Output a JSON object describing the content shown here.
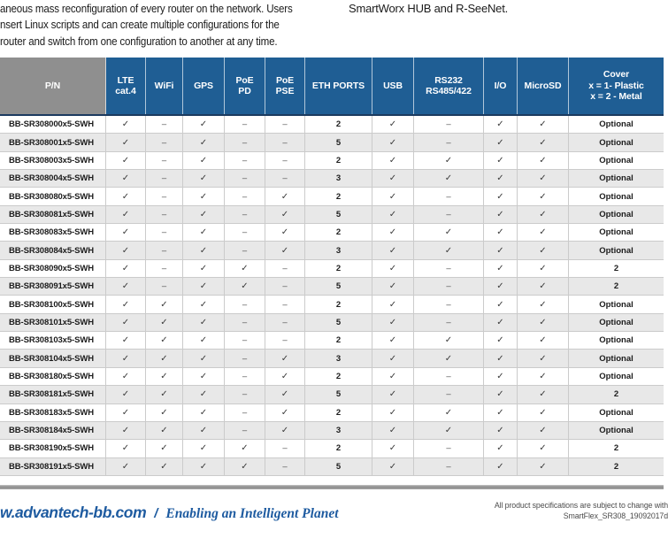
{
  "intro": {
    "left_lines": [
      "aneous mass reconfiguration of every router on the network. Users",
      "nsert Linux scripts and can create multiple configurations for the",
      "router and switch from one configuration to another at any time."
    ],
    "right_line": "SmartWorx HUB and R-SeeNet."
  },
  "table": {
    "headers": [
      "P/N",
      "LTE\ncat.4",
      "WiFi",
      "GPS",
      "PoE\nPD",
      "PoE\nPSE",
      "ETH PORTS",
      "USB",
      "RS232\nRS485/422",
      "I/O",
      "MicroSD",
      "Cover\nx = 1- Plastic\nx = 2 - Metal"
    ],
    "rows": [
      [
        "BB-SR308000x5-SWH",
        "✓",
        "–",
        "✓",
        "–",
        "–",
        "2",
        "✓",
        "–",
        "✓",
        "✓",
        "Optional"
      ],
      [
        "BB-SR308001x5-SWH",
        "✓",
        "–",
        "✓",
        "–",
        "–",
        "5",
        "✓",
        "–",
        "✓",
        "✓",
        "Optional"
      ],
      [
        "BB-SR308003x5-SWH",
        "✓",
        "–",
        "✓",
        "–",
        "–",
        "2",
        "✓",
        "✓",
        "✓",
        "✓",
        "Optional"
      ],
      [
        "BB-SR308004x5-SWH",
        "✓",
        "–",
        "✓",
        "–",
        "–",
        "3",
        "✓",
        "✓",
        "✓",
        "✓",
        "Optional"
      ],
      [
        "BB-SR308080x5-SWH",
        "✓",
        "–",
        "✓",
        "–",
        "✓",
        "2",
        "✓",
        "–",
        "✓",
        "✓",
        "Optional"
      ],
      [
        "BB-SR308081x5-SWH",
        "✓",
        "–",
        "✓",
        "–",
        "✓",
        "5",
        "✓",
        "–",
        "✓",
        "✓",
        "Optional"
      ],
      [
        "BB-SR308083x5-SWH",
        "✓",
        "–",
        "✓",
        "–",
        "✓",
        "2",
        "✓",
        "✓",
        "✓",
        "✓",
        "Optional"
      ],
      [
        "BB-SR308084x5-SWH",
        "✓",
        "–",
        "✓",
        "–",
        "✓",
        "3",
        "✓",
        "✓",
        "✓",
        "✓",
        "Optional"
      ],
      [
        "BB-SR308090x5-SWH",
        "✓",
        "–",
        "✓",
        "✓",
        "–",
        "2",
        "✓",
        "–",
        "✓",
        "✓",
        "2"
      ],
      [
        "BB-SR308091x5-SWH",
        "✓",
        "–",
        "✓",
        "✓",
        "–",
        "5",
        "✓",
        "–",
        "✓",
        "✓",
        "2"
      ],
      [
        "BB-SR308100x5-SWH",
        "✓",
        "✓",
        "✓",
        "–",
        "–",
        "2",
        "✓",
        "–",
        "✓",
        "✓",
        "Optional"
      ],
      [
        "BB-SR308101x5-SWH",
        "✓",
        "✓",
        "✓",
        "–",
        "–",
        "5",
        "✓",
        "–",
        "✓",
        "✓",
        "Optional"
      ],
      [
        "BB-SR308103x5-SWH",
        "✓",
        "✓",
        "✓",
        "–",
        "–",
        "2",
        "✓",
        "✓",
        "✓",
        "✓",
        "Optional"
      ],
      [
        "BB-SR308104x5-SWH",
        "✓",
        "✓",
        "✓",
        "–",
        "✓",
        "3",
        "✓",
        "✓",
        "✓",
        "✓",
        "Optional"
      ],
      [
        "BB-SR308180x5-SWH",
        "✓",
        "✓",
        "✓",
        "–",
        "✓",
        "2",
        "✓",
        "–",
        "✓",
        "✓",
        "Optional"
      ],
      [
        "BB-SR308181x5-SWH",
        "✓",
        "✓",
        "✓",
        "–",
        "✓",
        "5",
        "✓",
        "–",
        "✓",
        "✓",
        "2"
      ],
      [
        "BB-SR308183x5-SWH",
        "✓",
        "✓",
        "✓",
        "–",
        "✓",
        "2",
        "✓",
        "✓",
        "✓",
        "✓",
        "Optional"
      ],
      [
        "BB-SR308184x5-SWH",
        "✓",
        "✓",
        "✓",
        "–",
        "✓",
        "3",
        "✓",
        "✓",
        "✓",
        "✓",
        "Optional"
      ],
      [
        "BB-SR308190x5-SWH",
        "✓",
        "✓",
        "✓",
        "✓",
        "–",
        "2",
        "✓",
        "–",
        "✓",
        "✓",
        "2"
      ],
      [
        "BB-SR308191x5-SWH",
        "✓",
        "✓",
        "✓",
        "✓",
        "–",
        "5",
        "✓",
        "–",
        "✓",
        "✓",
        "2"
      ]
    ]
  },
  "footer": {
    "site": "w.advantech-bb.com",
    "separator": "/",
    "tagline": "Enabling an Intelligent Planet",
    "note_line1": "All product specifications are subject to change with",
    "note_line2": "SmartFlex_SR308_19092017d"
  },
  "colors": {
    "header_blue": "#1F5E94",
    "header_gray": "#8F8F8F",
    "header_underline_navy": "#1B3A5F",
    "row_stripe": "#E8E8E8",
    "cell_border": "#CBCBCB",
    "footer_blue": "#1E5BA0",
    "divider_gray": "#8D8D8D"
  }
}
